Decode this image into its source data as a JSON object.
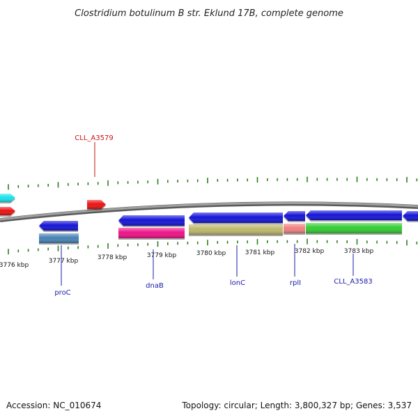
{
  "title": "Clostridium botulinum B str. Eklund 17B, complete genome",
  "footer": {
    "accession": "Accession: NC_010674",
    "topology": "Topology: circular; Length: 3,800,327 bp; Genes: 3,537"
  },
  "colors": {
    "backbone": "#8a8a8a",
    "tick": "#2e7d1f",
    "gene_label_dark": "#1a1aa8",
    "gene_label_red": "#cc1111"
  },
  "kbp_labels": [
    "3776 kbp",
    "3777 kbp",
    "3778 kbp",
    "3779 kbp",
    "3780 kbp",
    "3781 kbp",
    "3782 kbp",
    "3783 kbp"
  ],
  "gene_labels": [
    {
      "name": "CLL_A3579",
      "color": "red"
    },
    {
      "name": "proC",
      "color": "dark"
    },
    {
      "name": "dnaB",
      "color": "dark"
    },
    {
      "name": "lonC",
      "color": "dark"
    },
    {
      "name": "rplI",
      "color": "dark"
    },
    {
      "name": "CLL_A3583",
      "color": "dark"
    }
  ],
  "features": [
    {
      "name": "cyan-gene",
      "color": "#19e3ec",
      "direction": "forward"
    },
    {
      "name": "red-gene-left",
      "color": "#ee1111",
      "direction": "forward"
    },
    {
      "name": "red-gene-CLL_A3579",
      "color": "#ee1111",
      "direction": "forward"
    },
    {
      "name": "blue-gene-1",
      "color": "#1414d8",
      "direction": "reverse"
    },
    {
      "name": "steelblue-gene",
      "color": "#4682b4",
      "direction": "none"
    },
    {
      "name": "blue-gene-2",
      "color": "#1414d8",
      "direction": "reverse"
    },
    {
      "name": "pink-gene",
      "color": "#ee1188",
      "direction": "none"
    },
    {
      "name": "blue-gene-3",
      "color": "#1414d8",
      "direction": "reverse"
    },
    {
      "name": "khaki-gene",
      "color": "#bdb76b",
      "direction": "none"
    },
    {
      "name": "blue-gene-4",
      "color": "#1414d8",
      "direction": "reverse"
    },
    {
      "name": "salmon-gene",
      "color": "#f08080",
      "direction": "none"
    },
    {
      "name": "blue-gene-5",
      "color": "#1414d8",
      "direction": "reverse"
    },
    {
      "name": "green-gene",
      "color": "#33cc33",
      "direction": "none"
    },
    {
      "name": "blue-gene-6",
      "color": "#1414d8",
      "direction": "reverse"
    }
  ]
}
